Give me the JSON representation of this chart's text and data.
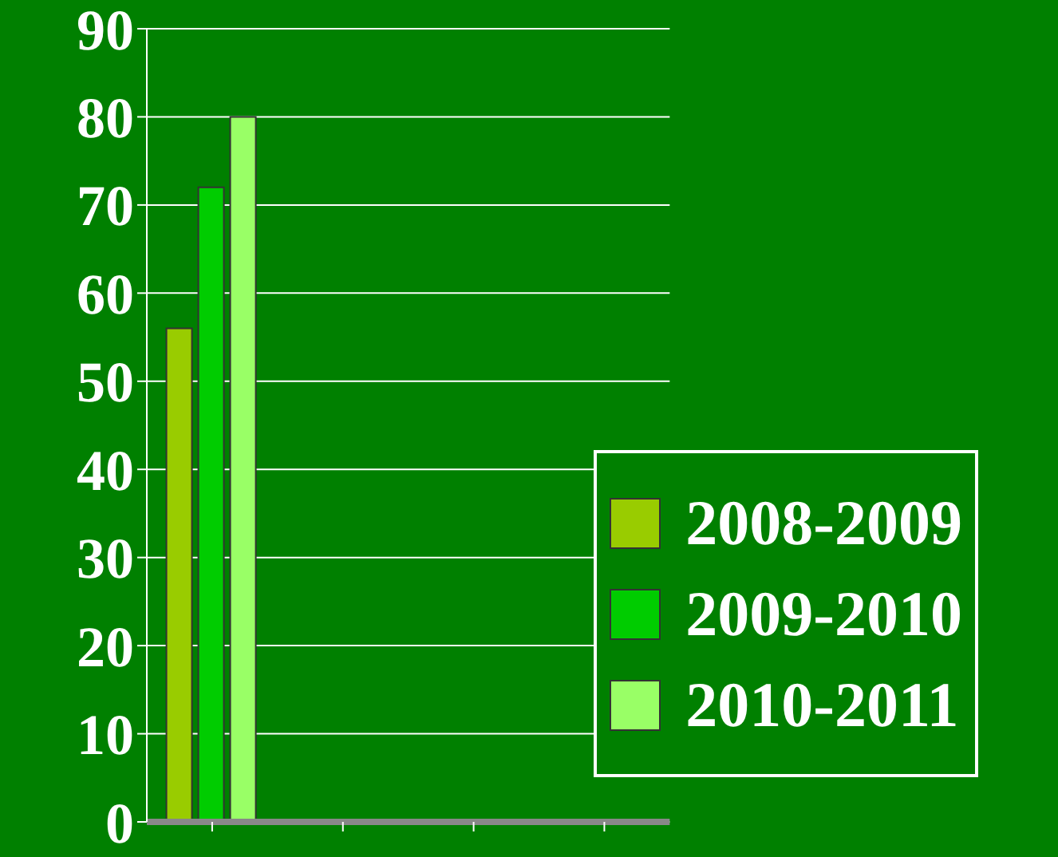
{
  "chart_data": {
    "type": "bar",
    "categories": [
      null,
      null,
      null,
      null
    ],
    "series": [
      {
        "name": "2008-2009",
        "color": "#99cc00",
        "values": [
          56,
          null,
          null,
          null
        ]
      },
      {
        "name": "2009-2010",
        "color": "#00cc00",
        "values": [
          72,
          null,
          null,
          null
        ]
      },
      {
        "name": "2010-2011",
        "color": "#99ff66",
        "values": [
          80,
          null,
          null,
          null
        ]
      }
    ],
    "ylim": [
      0,
      90
    ],
    "yticks": [
      0,
      10,
      20,
      30,
      40,
      50,
      60,
      70,
      80,
      90
    ],
    "grid": "y",
    "legend": "bottom right"
  }
}
